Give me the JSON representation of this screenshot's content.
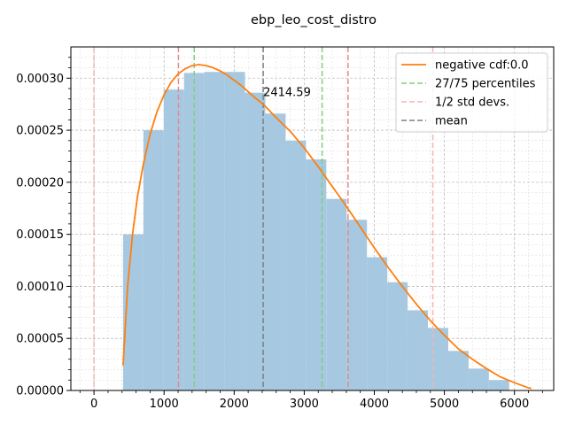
{
  "chart_data": {
    "type": "bar",
    "title": "ebp_leo_cost_distro",
    "xlabel": "",
    "ylabel": "",
    "xlim": [
      -330,
      6560
    ],
    "ylim": [
      0,
      0.00033
    ],
    "x_ticks": [
      0,
      1000,
      2000,
      3000,
      4000,
      5000,
      6000
    ],
    "x_tick_labels": [
      "0",
      "1000",
      "2000",
      "3000",
      "4000",
      "5000",
      "6000"
    ],
    "y_ticks": [
      0,
      5e-05,
      0.0001,
      0.00015,
      0.0002,
      0.00025,
      0.0003
    ],
    "y_tick_labels": [
      "0.00000",
      "0.00005",
      "0.00010",
      "0.00015",
      "0.00020",
      "0.00025",
      "0.00030"
    ],
    "grid": true,
    "minor_grid": true,
    "legend_placement": "top-right",
    "histogram": {
      "bin_edges": [
        415,
        705,
        995,
        1285,
        1575,
        1865,
        2155,
        2445,
        2735,
        3025,
        3315,
        3605,
        3895,
        4185,
        4475,
        4765,
        5055,
        5345,
        5635,
        5925
      ],
      "densities": [
        0.00015,
        0.00025,
        0.000289,
        0.000305,
        0.000306,
        0.000306,
        0.000286,
        0.000266,
        0.00024,
        0.000222,
        0.000184,
        0.000164,
        0.000128,
        0.000104,
        7.7e-05,
        6e-05,
        3.8e-05,
        2.1e-05,
        1e-05
      ],
      "color": "#a6c8e0"
    },
    "series": [
      {
        "name": "negative cdf:0.0",
        "color": "#ff7f0e",
        "x": [
          415,
          480,
          550,
          620,
          700,
          800,
          900,
          1000,
          1100,
          1200,
          1300,
          1400,
          1500,
          1600,
          1700,
          1800,
          1900,
          2000,
          2100,
          2200,
          2300,
          2415,
          2600,
          2800,
          3000,
          3200,
          3400,
          3600,
          3800,
          4000,
          4200,
          4400,
          4600,
          4800,
          5000,
          5200,
          5400,
          5600,
          5800,
          6000,
          6200,
          6240
        ],
        "y": [
          2.4e-05,
          0.0001,
          0.00015,
          0.000186,
          0.000216,
          0.000246,
          0.000268,
          0.000284,
          0.000296,
          0.000304,
          0.000309,
          0.000312,
          0.000313,
          0.000312,
          0.00031,
          0.000307,
          0.000303,
          0.000298,
          0.000293,
          0.000287,
          0.000281,
          0.000275,
          0.000262,
          0.000249,
          0.000233,
          0.000215,
          0.000196,
          0.000177,
          0.000157,
          0.000137,
          0.000118,
          0.0001,
          8.3e-05,
          6.7e-05,
          5.3e-05,
          4e-05,
          3e-05,
          2.1e-05,
          1.3e-05,
          7.5e-06,
          2.5e-06,
          2e-06
        ]
      }
    ],
    "vlines": [
      {
        "label": "27/75 percentiles",
        "x": 1430,
        "color": "#7fcf7f"
      },
      {
        "label": "",
        "x": 3255,
        "color": "#7fcf7f"
      },
      {
        "label": "1/2 std devs.",
        "x": 0,
        "color": "#f4b6b6"
      },
      {
        "label": "",
        "x": 1205,
        "color": "#e58a8a"
      },
      {
        "label": "",
        "x": 3625,
        "color": "#e58a8a"
      },
      {
        "label": "",
        "x": 4835,
        "color": "#f4b6b6"
      },
      {
        "label": "mean",
        "x": 2414.59,
        "color": "#7f7f7f"
      }
    ],
    "annotations": [
      {
        "text": "2414.59",
        "x": 2414.59,
        "y": 0.000282
      }
    ],
    "legend": [
      {
        "label": "negative cdf:0.0",
        "color": "#ff7f0e",
        "style": "solid"
      },
      {
        "label": "27/75 percentiles",
        "color": "#7fcf7f",
        "style": "dashed"
      },
      {
        "label": "1/2 std devs.",
        "color": "#f4b6b6",
        "style": "dashed"
      },
      {
        "label": "mean",
        "color": "#7f7f7f",
        "style": "dashed"
      }
    ]
  }
}
